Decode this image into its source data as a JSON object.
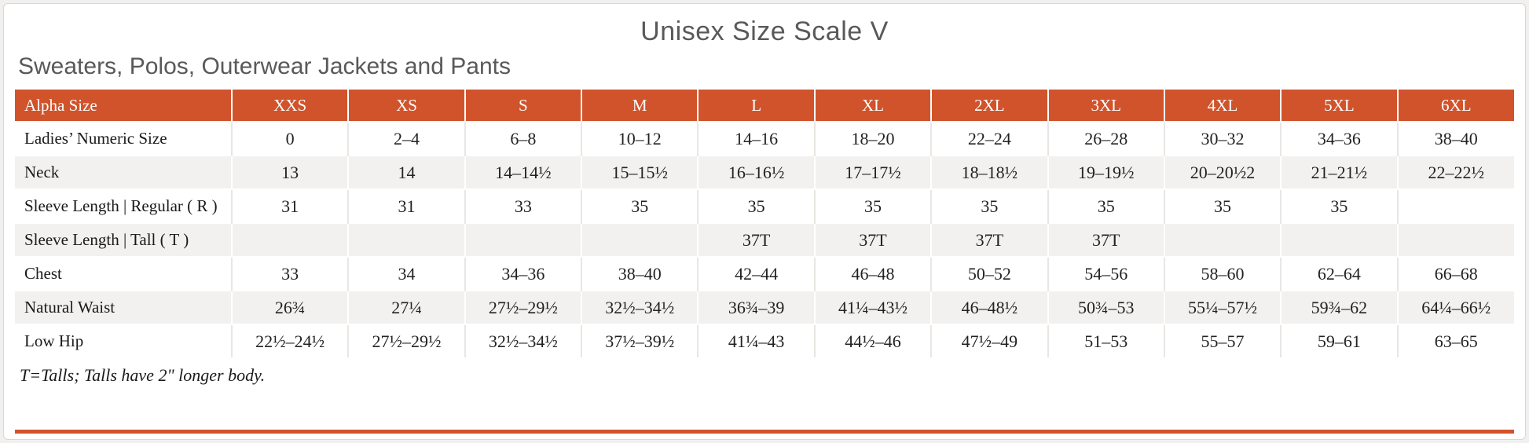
{
  "page": {
    "title": "Unisex Size Scale V",
    "subtitle": "Sweaters, Polos, Outerwear Jackets and Pants",
    "footnote": "T=Talls; Talls have 2\" longer body."
  },
  "colors": {
    "accent": "#d1532b",
    "header_text": "#ffffff",
    "row_alt_background": "#f2f1ef",
    "title_text": "#595959"
  },
  "chart_data": {
    "type": "table",
    "columns": [
      "Alpha Size",
      "XXS",
      "XS",
      "S",
      "M",
      "L",
      "XL",
      "2XL",
      "3XL",
      "4XL",
      "5XL",
      "6XL"
    ],
    "rows": [
      {
        "label": "Ladies’ Numeric Size",
        "values": [
          "0",
          "2–4",
          "6–8",
          "10–12",
          "14–16",
          "18–20",
          "22–24",
          "26–28",
          "30–32",
          "34–36",
          "38–40"
        ]
      },
      {
        "label": "Neck",
        "values": [
          "13",
          "14",
          "14–14½",
          "15–15½",
          "16–16½",
          "17–17½",
          "18–18½",
          "19–19½",
          "20–20½2",
          "21–21½",
          "22–22½"
        ]
      },
      {
        "label": "Sleeve Length | Regular ( R )",
        "values": [
          "31",
          "31",
          "33",
          "35",
          "35",
          "35",
          "35",
          "35",
          "35",
          "35",
          ""
        ]
      },
      {
        "label": "Sleeve Length | Tall ( T )",
        "values": [
          "",
          "",
          "",
          "",
          "37T",
          "37T",
          "37T",
          "37T",
          "",
          "",
          ""
        ]
      },
      {
        "label": "Chest",
        "values": [
          "33",
          "34",
          "34–36",
          "38–40",
          "42–44",
          "46–48",
          "50–52",
          "54–56",
          "58–60",
          "62–64",
          "66–68"
        ]
      },
      {
        "label": "Natural Waist",
        "values": [
          "26¾",
          "27¼",
          "27½–29½",
          "32½–34½",
          "36¾–39",
          "41¼–43½",
          "46–48½",
          "50¾–53",
          "55¼–57½",
          "59¾–62",
          "64¼–66½"
        ]
      },
      {
        "label": "Low Hip",
        "values": [
          "22½–24½",
          "27½–29½",
          "32½–34½",
          "37½–39½",
          "41¼–43",
          "44½–46",
          "47½–49",
          "51–53",
          "55–57",
          "59–61",
          "63–65"
        ]
      }
    ]
  }
}
